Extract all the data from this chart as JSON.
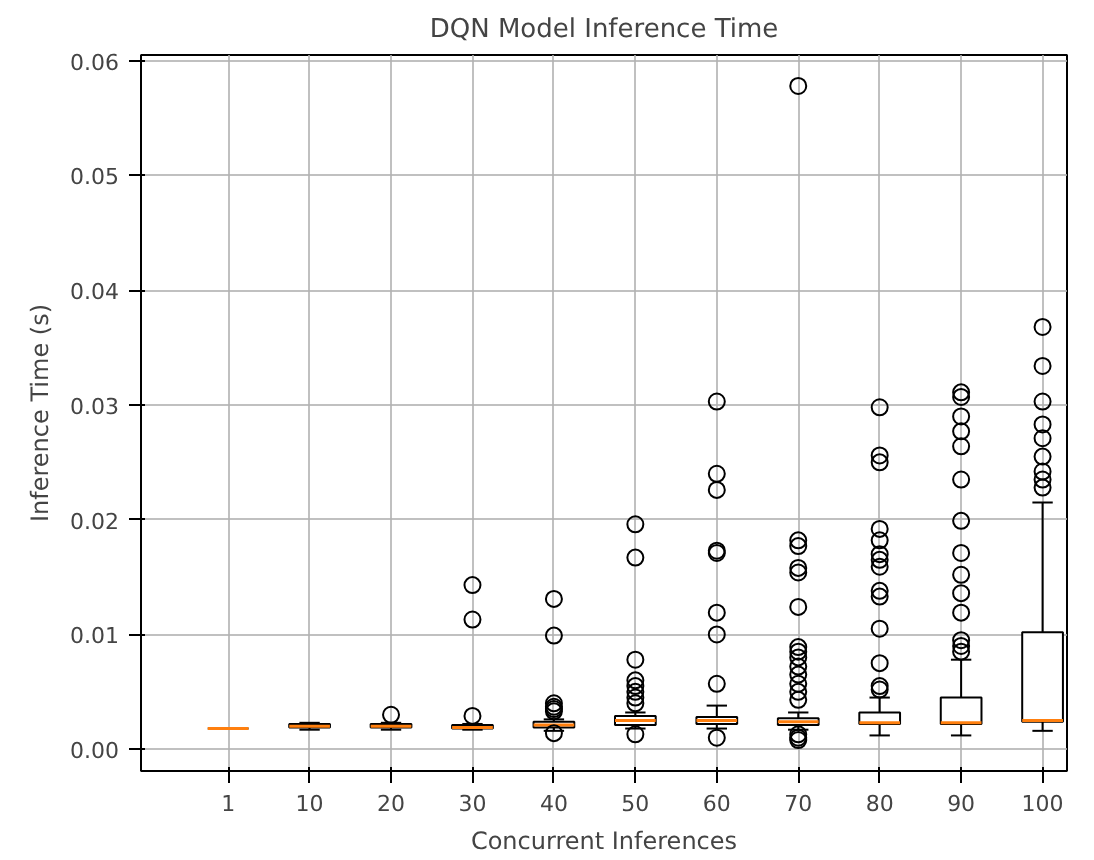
{
  "chart_data": {
    "type": "box",
    "title": "DQN Model Inference Time",
    "xlabel": "Concurrent Inferences",
    "ylabel": "Inference Time (s)",
    "categories": [
      "1",
      "10",
      "20",
      "30",
      "40",
      "50",
      "60",
      "70",
      "80",
      "90",
      "100"
    ],
    "ylim": [
      -0.0019,
      0.0605
    ],
    "yticks": [
      {
        "value": 0,
        "label": "0.00"
      },
      {
        "value": 0.01,
        "label": "0.01"
      },
      {
        "value": 0.02,
        "label": "0.02"
      },
      {
        "value": 0.03,
        "label": "0.03"
      },
      {
        "value": 0.04,
        "label": "0.04"
      },
      {
        "value": 0.05,
        "label": "0.05"
      },
      {
        "value": 0.06,
        "label": "0.06"
      }
    ],
    "grid": true,
    "marker": "circle",
    "boxes": [
      {
        "low": 0.0018,
        "q1": 0.0018,
        "median": 0.0018,
        "q3": 0.0018,
        "high": 0.0018
      },
      {
        "low": 0.0017,
        "q1": 0.0019,
        "median": 0.002,
        "q3": 0.0022,
        "high": 0.0023
      },
      {
        "low": 0.0017,
        "q1": 0.0019,
        "median": 0.002,
        "q3": 0.0022,
        "high": 0.0023,
        "outliers": [
          0.003
        ]
      },
      {
        "low": 0.0017,
        "q1": 0.0018,
        "median": 0.0019,
        "q3": 0.0021,
        "high": 0.0022,
        "outliers": [
          0.0029,
          0.0113,
          0.0143
        ]
      },
      {
        "low": 0.0016,
        "q1": 0.0019,
        "median": 0.0021,
        "q3": 0.0024,
        "high": 0.0026,
        "outliers": [
          0.0014,
          0.0033,
          0.0035,
          0.0037,
          0.004,
          0.0099,
          0.0131
        ]
      },
      {
        "low": 0.0018,
        "q1": 0.0021,
        "median": 0.0025,
        "q3": 0.0029,
        "high": 0.0032,
        "outliers": [
          0.0013,
          0.004,
          0.0045,
          0.005,
          0.0055,
          0.006,
          0.0078,
          0.0167,
          0.0196
        ]
      },
      {
        "low": 0.0018,
        "q1": 0.0022,
        "median": 0.0025,
        "q3": 0.0028,
        "high": 0.0038,
        "outliers": [
          0.001,
          0.0057,
          0.01,
          0.0119,
          0.0171,
          0.0173,
          0.0226,
          0.024,
          0.0303
        ]
      },
      {
        "low": 0.0017,
        "q1": 0.0021,
        "median": 0.0024,
        "q3": 0.0027,
        "high": 0.0032,
        "outliers": [
          0.0008,
          0.001,
          0.0013,
          0.0043,
          0.005,
          0.0057,
          0.0065,
          0.0072,
          0.008,
          0.0085,
          0.0089,
          0.0124,
          0.0154,
          0.0158,
          0.0177,
          0.0182,
          0.0578
        ]
      },
      {
        "low": 0.0012,
        "q1": 0.0022,
        "median": 0.0023,
        "q3": 0.0032,
        "high": 0.0045,
        "outliers": [
          0.0052,
          0.0055,
          0.0075,
          0.0105,
          0.0133,
          0.0138,
          0.0159,
          0.0165,
          0.017,
          0.0182,
          0.0192,
          0.025,
          0.0256,
          0.0298
        ]
      },
      {
        "low": 0.0012,
        "q1": 0.0022,
        "median": 0.0023,
        "q3": 0.0045,
        "high": 0.0078,
        "outliers": [
          0.0085,
          0.009,
          0.0095,
          0.0119,
          0.0136,
          0.0152,
          0.0171,
          0.0199,
          0.0235,
          0.0264,
          0.0277,
          0.029,
          0.0307,
          0.0311
        ]
      },
      {
        "low": 0.0016,
        "q1": 0.0024,
        "median": 0.0025,
        "q3": 0.0102,
        "high": 0.0215,
        "outliers": [
          0.0228,
          0.0235,
          0.0242,
          0.0255,
          0.0271,
          0.0283,
          0.0303,
          0.0334,
          0.0368
        ]
      }
    ]
  }
}
